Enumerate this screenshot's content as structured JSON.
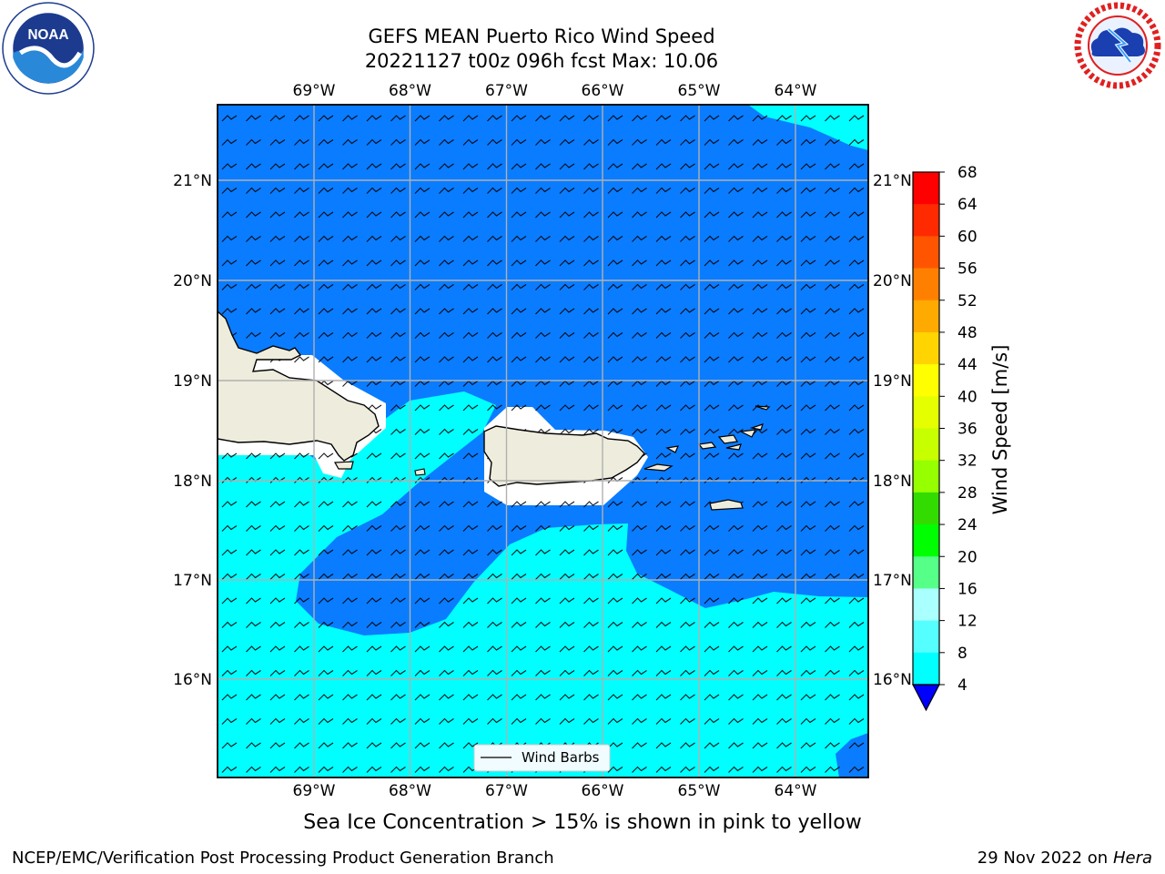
{
  "title": {
    "line1": "GEFS MEAN Puerto Rico Wind Speed",
    "line2": "20221127 t00z 096h fcst   Max: 10.06"
  },
  "map": {
    "lon_labels": [
      "69°W",
      "68°W",
      "67°W",
      "66°W",
      "65°W",
      "64°W"
    ],
    "lat_labels": [
      "21°N",
      "20°N",
      "19°N",
      "18°N",
      "17°N",
      "16°N"
    ],
    "legend_label": "Wind Barbs",
    "colors": {
      "ocean_4_8": "#0a7cff",
      "ocean_8_12": "#00ffff",
      "land": "#eeecdc",
      "gridline": "#b0b0b0"
    }
  },
  "colorbar": {
    "label": "Wind Speed [m/s]",
    "ticks": [
      "68",
      "64",
      "60",
      "56",
      "52",
      "48",
      "44",
      "40",
      "36",
      "32",
      "28",
      "24",
      "20",
      "16",
      "12",
      "8",
      "4"
    ],
    "colors": [
      "#ff0000",
      "#ff2a00",
      "#ff5500",
      "#ff8000",
      "#ffaa00",
      "#ffd400",
      "#ffff00",
      "#e6ff00",
      "#c8ff00",
      "#96ff00",
      "#32dc00",
      "#00ff00",
      "#55ff88",
      "#aaffff",
      "#55ffff",
      "#00ffff",
      "#0a7cff"
    ],
    "extend_color": "#0000ff"
  },
  "chart_data": {
    "type": "heatmap",
    "title": "GEFS MEAN Puerto Rico Wind Speed",
    "subtitle": "20221127 t00z 096h fcst   Max: 10.06",
    "xlabel": "",
    "ylabel": "",
    "lon_ticks": [
      -69,
      -68,
      -67,
      -66,
      -65,
      -64
    ],
    "lat_ticks": [
      21,
      20,
      19,
      18,
      17,
      16
    ],
    "colorbar_levels": [
      4,
      8,
      12,
      16,
      20,
      24,
      28,
      32,
      36,
      40,
      44,
      48,
      52,
      56,
      60,
      64,
      68
    ],
    "colorbar_label": "Wind Speed [m/s]",
    "max_value": 10.06,
    "grid": true,
    "legend": "bottom-center"
  },
  "notes": {
    "ice": "Sea Ice Concentration > 15% is shown in pink to yellow",
    "footer_left": "NCEP/EMC/Verification Post Processing Product Generation Branch",
    "footer_date": "29 Nov 2022 on",
    "footer_machine": "Hera"
  },
  "icons": {
    "noaa": "noaa-logo-icon",
    "nws": "nws-logo-icon"
  }
}
